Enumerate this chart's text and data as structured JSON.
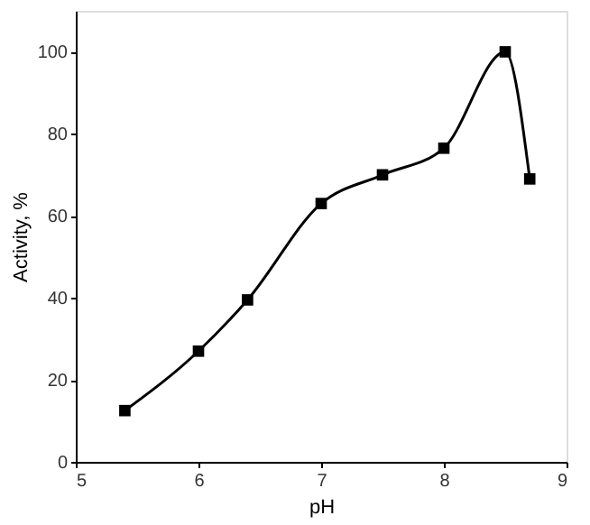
{
  "chart_data": {
    "type": "line",
    "xlabel": "pH",
    "ylabel": "Activity, %",
    "x": [
      5.4,
      6,
      6.4,
      7,
      7.5,
      8,
      8.5,
      8.7
    ],
    "series": [
      {
        "color": "#000000",
        "values": [
          12.5,
          27,
          39.5,
          63,
          70,
          76.5,
          100,
          69
        ]
      }
    ],
    "xlim": [
      5,
      9
    ],
    "xticks": [
      5,
      6,
      7,
      8,
      9
    ],
    "ylim": [
      0,
      110
    ],
    "yticks": [
      0,
      20,
      40,
      60,
      80,
      100
    ],
    "grid": false,
    "marker": "square",
    "line_style": "solid"
  }
}
